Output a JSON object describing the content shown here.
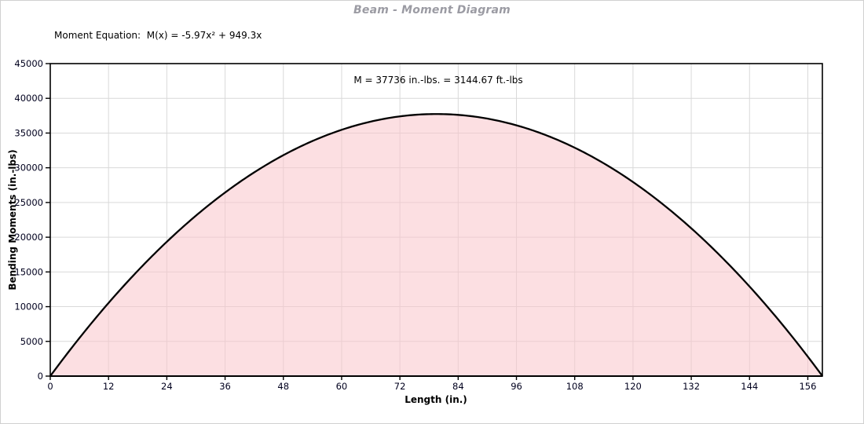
{
  "window": {
    "title": "Beam - Moment Diagram"
  },
  "equation": {
    "label": "Moment Equation:",
    "formula": "M(x) = -5.97x² + 949.3x"
  },
  "annotation": {
    "text": "M = 37736 in.-lbs. = 3144.67 ft.-lbs"
  },
  "colors": {
    "title": "#9b9ba3",
    "text": "#000000",
    "tick_label": "#00001e",
    "grid": "#d9d9d9",
    "plot_border": "#000000",
    "curve": "#000000",
    "fill": "#f9c4ca",
    "window_border": "#d0d0d0",
    "background": "#ffffff"
  },
  "chart_data": {
    "type": "area",
    "title": "Beam - Moment Diagram",
    "xlabel": "Length (in.)",
    "ylabel": "Bending Moments (in.-lbs)",
    "equation": "M(x) = -5.97x² + 949.3x",
    "coefficients": {
      "a": -5.97,
      "b": 949.3
    },
    "xlim": [
      0,
      159
    ],
    "ylim": [
      0,
      45000
    ],
    "x_ticks": [
      0,
      12,
      24,
      36,
      48,
      60,
      72,
      84,
      96,
      108,
      120,
      132,
      144,
      156
    ],
    "y_ticks": [
      0,
      5000,
      10000,
      15000,
      20000,
      25000,
      30000,
      35000,
      40000,
      45000
    ],
    "grid": true,
    "legend": "none",
    "max_point": {
      "x": 79.5,
      "moment_in_lbs": 37736,
      "moment_ft_lbs": 3144.67
    },
    "annotation": "M = 37736 in.-lbs. = 3144.67 ft.-lbs",
    "x": [
      0,
      12,
      24,
      36,
      48,
      60,
      72,
      84,
      96,
      108,
      120,
      132,
      144,
      156,
      159
    ],
    "y": [
      0,
      10532,
      19345,
      26438,
      31812,
      35466,
      37401,
      37617,
      36113,
      32890,
      27948,
      21286,
      12905,
      2805,
      0
    ],
    "fill_opacity": 0.55
  }
}
